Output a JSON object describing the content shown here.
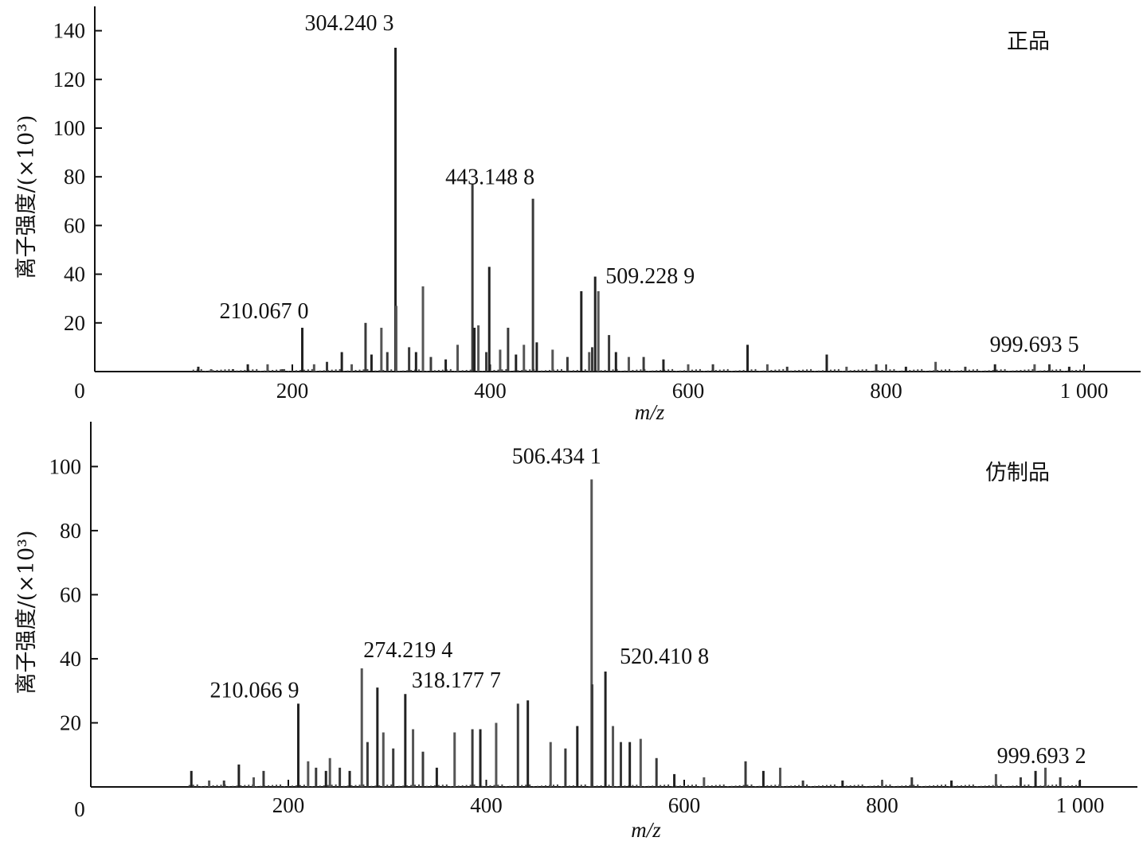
{
  "chart_data": [
    {
      "type": "bar",
      "panel_label": "正品",
      "xlabel": "m/z",
      "ylabel": "离子强度/(×10³)",
      "xlim": [
        0,
        1060
      ],
      "ylim": [
        0,
        150
      ],
      "xticks": [
        0,
        200,
        400,
        600,
        800,
        1000
      ],
      "xtick_labels": [
        "0",
        "200",
        "400",
        "600",
        "800",
        "1 000"
      ],
      "yticks": [
        20,
        40,
        60,
        80,
        100,
        120,
        140
      ],
      "ytick_labels": [
        "20",
        "40",
        "60",
        "80",
        "100",
        "120",
        "140"
      ],
      "peaks": [
        {
          "mz": 105,
          "intensity": 2
        },
        {
          "mz": 118,
          "intensity": 1
        },
        {
          "mz": 140,
          "intensity": 1
        },
        {
          "mz": 155,
          "intensity": 3
        },
        {
          "mz": 175,
          "intensity": 3
        },
        {
          "mz": 190,
          "intensity": 1
        },
        {
          "mz": 210.067,
          "intensity": 18
        },
        {
          "mz": 222,
          "intensity": 3
        },
        {
          "mz": 235,
          "intensity": 4
        },
        {
          "mz": 250,
          "intensity": 8
        },
        {
          "mz": 260,
          "intensity": 3
        },
        {
          "mz": 274,
          "intensity": 20
        },
        {
          "mz": 280,
          "intensity": 7
        },
        {
          "mz": 290,
          "intensity": 18
        },
        {
          "mz": 296,
          "intensity": 8
        },
        {
          "mz": 304.2403,
          "intensity": 133
        },
        {
          "mz": 305,
          "intensity": 27
        },
        {
          "mz": 318,
          "intensity": 10
        },
        {
          "mz": 325,
          "intensity": 8
        },
        {
          "mz": 332,
          "intensity": 35
        },
        {
          "mz": 340,
          "intensity": 6
        },
        {
          "mz": 355,
          "intensity": 5
        },
        {
          "mz": 367,
          "intensity": 11
        },
        {
          "mz": 382,
          "intensity": 77
        },
        {
          "mz": 384,
          "intensity": 18
        },
        {
          "mz": 388,
          "intensity": 19
        },
        {
          "mz": 396,
          "intensity": 8
        },
        {
          "mz": 399,
          "intensity": 43
        },
        {
          "mz": 410,
          "intensity": 9
        },
        {
          "mz": 418,
          "intensity": 18
        },
        {
          "mz": 426,
          "intensity": 7
        },
        {
          "mz": 434,
          "intensity": 11
        },
        {
          "mz": 443.1488,
          "intensity": 71
        },
        {
          "mz": 447,
          "intensity": 12
        },
        {
          "mz": 463,
          "intensity": 9
        },
        {
          "mz": 478,
          "intensity": 6
        },
        {
          "mz": 492,
          "intensity": 33
        },
        {
          "mz": 500,
          "intensity": 8
        },
        {
          "mz": 503,
          "intensity": 10
        },
        {
          "mz": 506,
          "intensity": 39
        },
        {
          "mz": 509.2289,
          "intensity": 33
        },
        {
          "mz": 520,
          "intensity": 15
        },
        {
          "mz": 527,
          "intensity": 8
        },
        {
          "mz": 540,
          "intensity": 6
        },
        {
          "mz": 555,
          "intensity": 6
        },
        {
          "mz": 575,
          "intensity": 5
        },
        {
          "mz": 600,
          "intensity": 3
        },
        {
          "mz": 625,
          "intensity": 3
        },
        {
          "mz": 660,
          "intensity": 11
        },
        {
          "mz": 680,
          "intensity": 3
        },
        {
          "mz": 700,
          "intensity": 2
        },
        {
          "mz": 740,
          "intensity": 7
        },
        {
          "mz": 760,
          "intensity": 2
        },
        {
          "mz": 790,
          "intensity": 3
        },
        {
          "mz": 820,
          "intensity": 2
        },
        {
          "mz": 850,
          "intensity": 4
        },
        {
          "mz": 880,
          "intensity": 2
        },
        {
          "mz": 910,
          "intensity": 3
        },
        {
          "mz": 950,
          "intensity": 3
        },
        {
          "mz": 965,
          "intensity": 3
        },
        {
          "mz": 985,
          "intensity": 2
        },
        {
          "mz": 999.6935,
          "intensity": 1
        }
      ],
      "annotations": [
        {
          "mz": 304.2403,
          "intensity": 133,
          "text": "304.240 3"
        },
        {
          "mz": 443.1488,
          "intensity": 71,
          "text": "443.148 8"
        },
        {
          "mz": 509.2289,
          "intensity": 33,
          "text": "509.228 9"
        },
        {
          "mz": 210.067,
          "intensity": 18,
          "text": "210.067 0"
        },
        {
          "mz": 999.6935,
          "intensity": 1,
          "text": "999.693 5"
        }
      ]
    },
    {
      "type": "bar",
      "panel_label": "仿制品",
      "xlabel": "m/z",
      "ylabel": "离子强度/(×10³)",
      "xlim": [
        0,
        1060
      ],
      "ylim": [
        0,
        114
      ],
      "xticks": [
        0,
        200,
        400,
        600,
        800,
        1000
      ],
      "xtick_labels": [
        "0",
        "200",
        "400",
        "600",
        "800",
        "1 000"
      ],
      "yticks": [
        20,
        40,
        60,
        80,
        100
      ],
      "ytick_labels": [
        "20",
        "40",
        "60",
        "80",
        "100"
      ],
      "peaks": [
        {
          "mz": 102,
          "intensity": 5
        },
        {
          "mz": 120,
          "intensity": 2
        },
        {
          "mz": 135,
          "intensity": 2
        },
        {
          "mz": 150,
          "intensity": 7
        },
        {
          "mz": 165,
          "intensity": 3
        },
        {
          "mz": 175,
          "intensity": 5
        },
        {
          "mz": 210.0669,
          "intensity": 26
        },
        {
          "mz": 220,
          "intensity": 8
        },
        {
          "mz": 228,
          "intensity": 6
        },
        {
          "mz": 238,
          "intensity": 5
        },
        {
          "mz": 242,
          "intensity": 9
        },
        {
          "mz": 252,
          "intensity": 6
        },
        {
          "mz": 262,
          "intensity": 5
        },
        {
          "mz": 274.2194,
          "intensity": 37
        },
        {
          "mz": 280,
          "intensity": 14
        },
        {
          "mz": 290,
          "intensity": 31
        },
        {
          "mz": 296,
          "intensity": 17
        },
        {
          "mz": 306,
          "intensity": 12
        },
        {
          "mz": 318.1777,
          "intensity": 29
        },
        {
          "mz": 326,
          "intensity": 18
        },
        {
          "mz": 336,
          "intensity": 11
        },
        {
          "mz": 350,
          "intensity": 6
        },
        {
          "mz": 368,
          "intensity": 17
        },
        {
          "mz": 386,
          "intensity": 18
        },
        {
          "mz": 394,
          "intensity": 18
        },
        {
          "mz": 410,
          "intensity": 20
        },
        {
          "mz": 432,
          "intensity": 26
        },
        {
          "mz": 442,
          "intensity": 27
        },
        {
          "mz": 465,
          "intensity": 14
        },
        {
          "mz": 480,
          "intensity": 12
        },
        {
          "mz": 492,
          "intensity": 19
        },
        {
          "mz": 506.4341,
          "intensity": 96
        },
        {
          "mz": 507,
          "intensity": 32
        },
        {
          "mz": 520.4108,
          "intensity": 36
        },
        {
          "mz": 528,
          "intensity": 19
        },
        {
          "mz": 536,
          "intensity": 14
        },
        {
          "mz": 545,
          "intensity": 14
        },
        {
          "mz": 556,
          "intensity": 15
        },
        {
          "mz": 572,
          "intensity": 9
        },
        {
          "mz": 590,
          "intensity": 4
        },
        {
          "mz": 620,
          "intensity": 3
        },
        {
          "mz": 662,
          "intensity": 8
        },
        {
          "mz": 680,
          "intensity": 5
        },
        {
          "mz": 697,
          "intensity": 6
        },
        {
          "mz": 720,
          "intensity": 2
        },
        {
          "mz": 760,
          "intensity": 2
        },
        {
          "mz": 800,
          "intensity": 2
        },
        {
          "mz": 830,
          "intensity": 3
        },
        {
          "mz": 870,
          "intensity": 2
        },
        {
          "mz": 915,
          "intensity": 4
        },
        {
          "mz": 940,
          "intensity": 3
        },
        {
          "mz": 955,
          "intensity": 5
        },
        {
          "mz": 965,
          "intensity": 6
        },
        {
          "mz": 980,
          "intensity": 3
        },
        {
          "mz": 999.6932,
          "intensity": 2
        }
      ],
      "annotations": [
        {
          "mz": 506.4341,
          "intensity": 96,
          "text": "506.434 1"
        },
        {
          "mz": 520.4108,
          "intensity": 36,
          "text": "520.410 8"
        },
        {
          "mz": 274.2194,
          "intensity": 37,
          "text": "274.219 4"
        },
        {
          "mz": 210.0669,
          "intensity": 26,
          "text": "210.066 9"
        },
        {
          "mz": 318.1777,
          "intensity": 29,
          "text": "318.177 7"
        },
        {
          "mz": 999.6932,
          "intensity": 2,
          "text": "999.693 2"
        }
      ]
    }
  ]
}
